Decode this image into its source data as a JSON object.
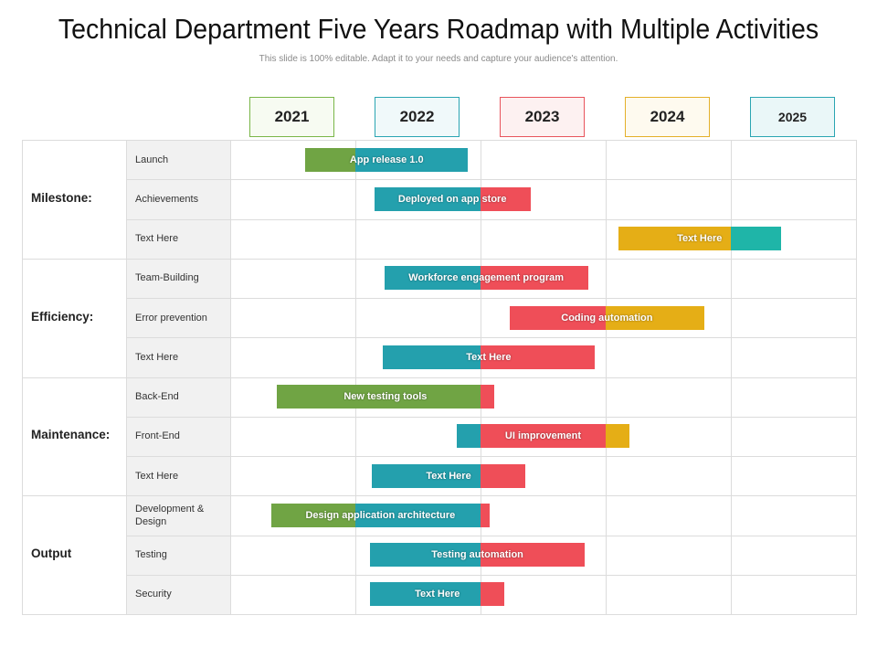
{
  "title": "Technical Department Five Years Roadmap with Multiple Activities",
  "subtitle": "This slide is 100% editable. Adapt it to your needs and capture your audience's attention.",
  "colors": {
    "green": "#70a444",
    "teal": "#24a0ad",
    "red": "#ef4e58",
    "yellow": "#e5ae16",
    "aqua": "#1fb5a8"
  },
  "years": [
    {
      "label": "2021",
      "border": "#7ab648",
      "fill": "#f7fbf2"
    },
    {
      "label": "2022",
      "border": "#2aa5b2",
      "fill": "#f0f9fa"
    },
    {
      "label": "2023",
      "border": "#e8545c",
      "fill": "#fdf1f1"
    },
    {
      "label": "2024",
      "border": "#e4b02a",
      "fill": "#fefaef"
    },
    {
      "label": "2025",
      "border": "#2aa5b2",
      "fill": "#eaf7f8"
    }
  ],
  "groups": [
    {
      "label": "Milestone:",
      "rows": [
        {
          "label": "Launch",
          "bar": {
            "text": "App release 1.0",
            "start": 2021.6,
            "end": 2022.9,
            "segments": [
              {
                "color": "green",
                "to": 2022.0
              },
              {
                "color": "teal",
                "to": 2022.9
              }
            ]
          }
        },
        {
          "label": "Achievements",
          "bar": {
            "text": "Deployed on app store",
            "start": 2022.15,
            "end": 2023.4,
            "segments": [
              {
                "color": "teal",
                "to": 2023.0
              },
              {
                "color": "red",
                "to": 2023.4
              }
            ]
          }
        },
        {
          "label": "Text Here",
          "bar": {
            "text": "Text Here",
            "start": 2024.1,
            "end": 2025.4,
            "segments": [
              {
                "color": "yellow",
                "to": 2025.0
              },
              {
                "color": "aqua",
                "to": 2025.4
              }
            ]
          }
        }
      ]
    },
    {
      "label": "Efficiency:",
      "rows": [
        {
          "label": "Team-Building",
          "bar": {
            "text": "Workforce engagement  program",
            "start": 2022.23,
            "end": 2023.86,
            "segments": [
              {
                "color": "teal",
                "to": 2023.0
              },
              {
                "color": "red",
                "to": 2023.86
              }
            ]
          }
        },
        {
          "label": "Error prevention",
          "bar": {
            "text": "Coding automation",
            "start": 2023.23,
            "end": 2024.79,
            "segments": [
              {
                "color": "red",
                "to": 2024.0
              },
              {
                "color": "yellow",
                "to": 2024.79
              }
            ]
          }
        },
        {
          "label": "Text Here",
          "bar": {
            "text": "Text Here",
            "start": 2022.22,
            "end": 2023.91,
            "segments": [
              {
                "color": "teal",
                "to": 2023.0
              },
              {
                "color": "red",
                "to": 2023.91
              }
            ]
          }
        }
      ]
    },
    {
      "label": "Maintenance:",
      "rows": [
        {
          "label": "Back-End",
          "bar": {
            "text": "New testing tools",
            "start": 2021.37,
            "end": 2023.11,
            "segments": [
              {
                "color": "green",
                "to": 2023.0
              },
              {
                "color": "red",
                "to": 2023.11
              }
            ]
          }
        },
        {
          "label": "Front-End",
          "bar": {
            "text": "UI improvement",
            "start": 2022.81,
            "end": 2024.19,
            "segments": [
              {
                "color": "teal",
                "to": 2023.0
              },
              {
                "color": "red",
                "to": 2024.0
              },
              {
                "color": "yellow",
                "to": 2024.19
              }
            ]
          }
        },
        {
          "label": "Text Here",
          "bar": {
            "text": "Text Here",
            "start": 2022.13,
            "end": 2023.36,
            "segments": [
              {
                "color": "teal",
                "to": 2023.0
              },
              {
                "color": "red",
                "to": 2023.36
              }
            ]
          }
        }
      ]
    },
    {
      "label": "Output",
      "rows": [
        {
          "label": "Development & Design",
          "bar": {
            "text": "Design application architecture",
            "start": 2021.33,
            "end": 2023.07,
            "segments": [
              {
                "color": "green",
                "to": 2022.0
              },
              {
                "color": "teal",
                "to": 2023.0
              },
              {
                "color": "red",
                "to": 2023.07
              }
            ]
          }
        },
        {
          "label": "Testing",
          "bar": {
            "text": "Testing automation",
            "start": 2022.12,
            "end": 2023.83,
            "segments": [
              {
                "color": "teal",
                "to": 2023.0
              },
              {
                "color": "red",
                "to": 2023.83
              }
            ]
          }
        },
        {
          "label": "Security",
          "bar": {
            "text": "Text Here",
            "start": 2022.12,
            "end": 2023.19,
            "segments": [
              {
                "color": "teal",
                "to": 2023.0
              },
              {
                "color": "red",
                "to": 2023.19
              }
            ]
          }
        }
      ]
    }
  ]
}
